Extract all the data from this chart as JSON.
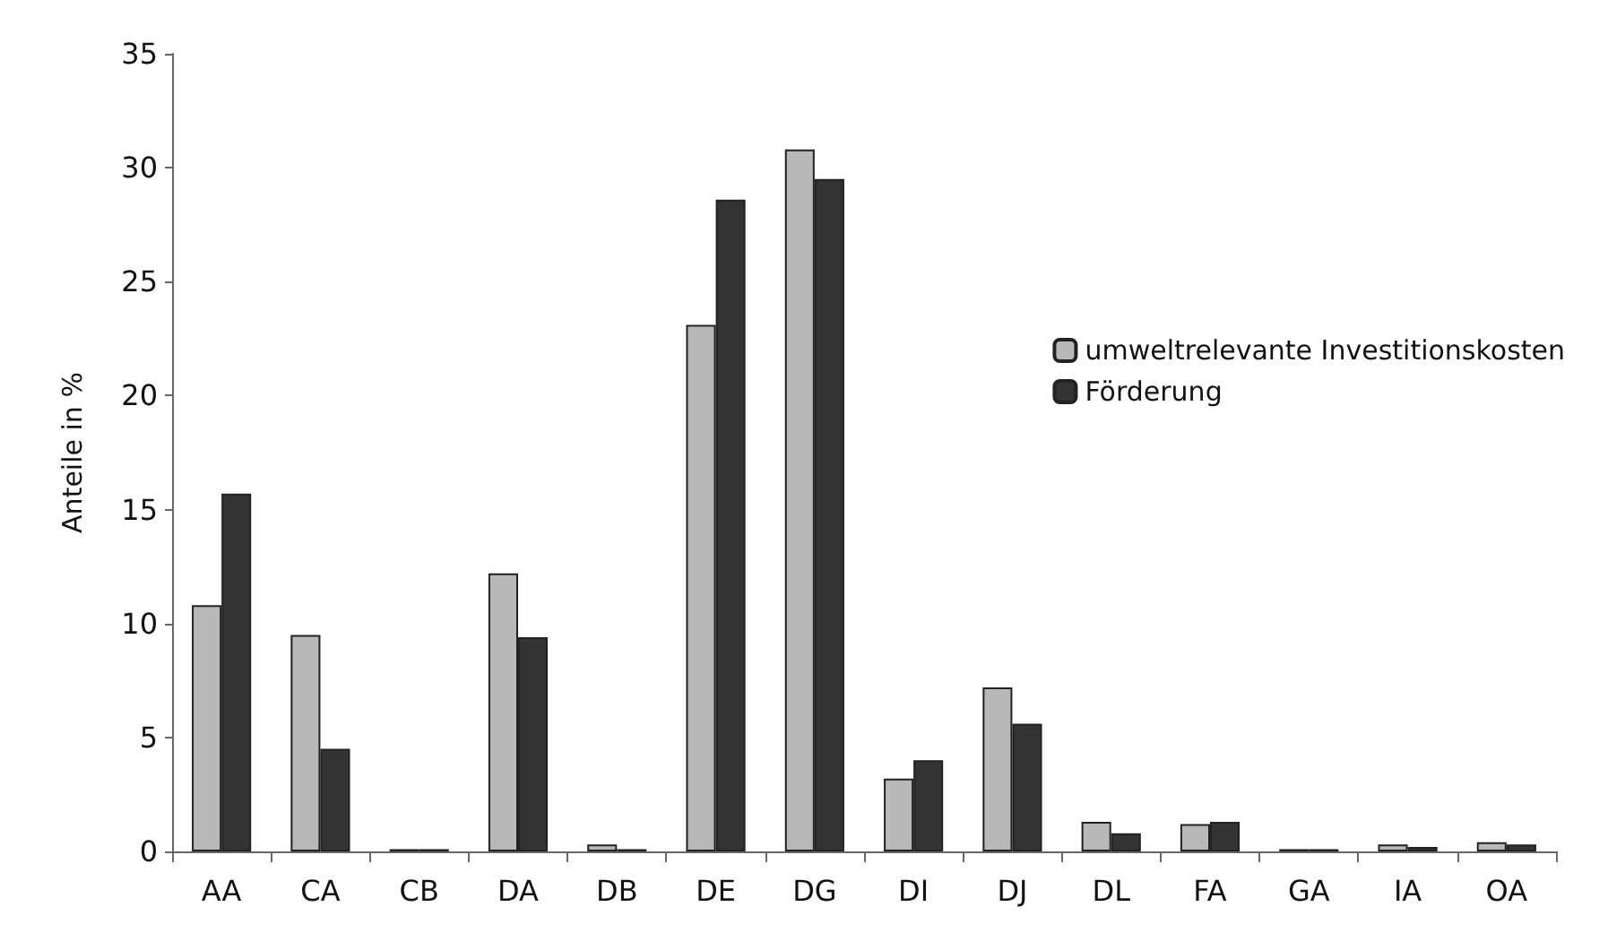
{
  "chart_data": {
    "type": "bar",
    "ylabel": "Anteile in %",
    "categories": [
      "AA",
      "CA",
      "CB",
      "DA",
      "DB",
      "DE",
      "DG",
      "DI",
      "DJ",
      "DL",
      "FA",
      "GA",
      "IA",
      "OA"
    ],
    "series": [
      {
        "name": "umweltrelevante Investitionskosten",
        "color": "#b8b8b8",
        "values": [
          10.8,
          9.5,
          0.1,
          12.2,
          0.3,
          23.1,
          30.8,
          3.2,
          7.2,
          1.3,
          1.2,
          0.1,
          0.3,
          0.4
        ]
      },
      {
        "name": "Förderung",
        "color": "#333333",
        "values": [
          15.7,
          4.5,
          0.1,
          9.4,
          0.1,
          28.6,
          29.5,
          4.0,
          5.6,
          0.8,
          1.3,
          0.1,
          0.2,
          0.3
        ]
      }
    ],
    "ylim": [
      0,
      35
    ],
    "yticks": [
      0,
      5,
      10,
      15,
      20,
      25,
      30,
      35
    ],
    "grid": false,
    "legend": "right"
  }
}
